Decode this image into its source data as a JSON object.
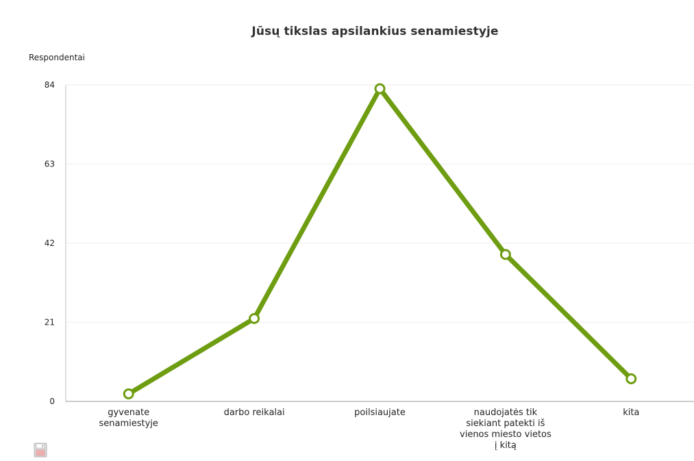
{
  "chart_data": {
    "type": "line",
    "title": "Jūsų tikslas apsilankius senamiestyje",
    "ylabel": "Respondentai",
    "xlabel": "",
    "categories": [
      [
        "gyvenate",
        "senamiestyje"
      ],
      [
        "darbo reikalai"
      ],
      [
        "poilsiaujate"
      ],
      [
        "naudojatės tik",
        "siekiant patekti iš",
        "vienos miesto vietos",
        "į kitą"
      ],
      [
        "kita"
      ]
    ],
    "series": [
      {
        "values": [
          2,
          22,
          83,
          39,
          6
        ],
        "color": "#6f9d12"
      }
    ],
    "y_ticks": [
      "0",
      "21",
      "42",
      "63",
      "84"
    ],
    "ylim": [
      0,
      84
    ],
    "grid": true,
    "legend": "none"
  },
  "toolbar": {
    "save_icon": "floppy-disk-icon"
  }
}
